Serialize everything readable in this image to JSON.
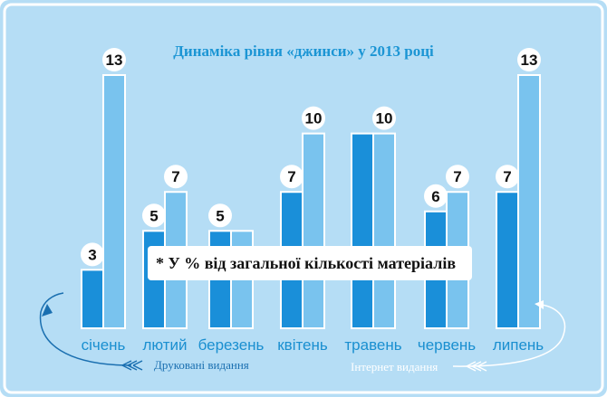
{
  "colors": {
    "background": "#b5ddf5",
    "frame": "#ffffff",
    "print_bar": "#1a8fd9",
    "internet_bar": "#79c3ee",
    "bar_outline": "#ffffff",
    "title": "#1b95d4",
    "category": "#1a8fd0",
    "print_legend": "#1a6fb0",
    "internet_legend": "#ffffff"
  },
  "note": "* У % від загальної кількості матеріалів",
  "legend": {
    "print": "Друковані видання",
    "internet": "Інтернет видання",
    "print_arrow_icon": "left-curved-arrow-icon",
    "internet_arrow_icon": "right-curved-arrow-icon"
  },
  "chart_data": {
    "type": "bar",
    "title": "Динаміка рівня «джинси» у 2013 році",
    "categories": [
      "січень",
      "лютий",
      "березень",
      "квітень",
      "травень",
      "червень",
      "липень"
    ],
    "series": [
      {
        "name": "Друковані видання",
        "values": [
          3,
          5,
          5,
          7,
          10,
          6,
          7
        ]
      },
      {
        "name": "Інтернет видання",
        "values": [
          13,
          7,
          5,
          10,
          10,
          7,
          13
        ]
      }
    ],
    "value_labels": [
      [
        "3",
        "13"
      ],
      [
        "5",
        "7"
      ],
      [
        "5",
        ""
      ],
      [
        "7",
        "10"
      ],
      [
        "",
        "10"
      ],
      [
        "6",
        "7"
      ],
      [
        "7",
        "13"
      ]
    ],
    "ylim": [
      0,
      13
    ],
    "grid": false,
    "legend_position": "bottom"
  }
}
